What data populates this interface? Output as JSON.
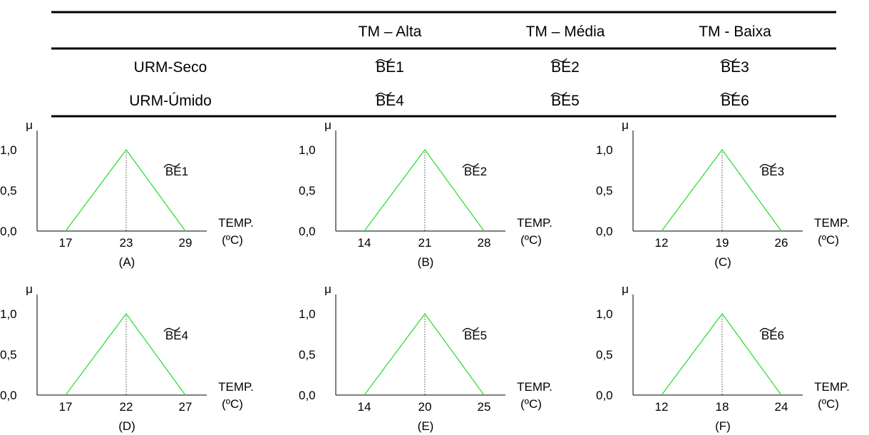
{
  "table": {
    "headers": [
      "TM – Alta",
      "TM – Média",
      "TM - Baixa"
    ],
    "rows": [
      {
        "label": "URM-Seco",
        "cells": [
          "BE1",
          "BE2",
          "BE3"
        ]
      },
      {
        "label": "URM-Úmido",
        "cells": [
          "BE4",
          "BE5",
          "BE6"
        ]
      }
    ]
  },
  "chart_data": [
    {
      "type": "line",
      "panel": "(A)",
      "set": "BE1",
      "xticks": [
        17,
        23,
        29
      ],
      "series": [
        {
          "x": [
            17,
            23,
            29
          ],
          "y": [
            0,
            1,
            0
          ]
        }
      ],
      "peak": 23,
      "yticks": [
        "1,0",
        "0,5",
        "0,0"
      ],
      "ylabel": "μ",
      "xlabel": [
        "TEMP.",
        "(ºC)"
      ],
      "color": "#33dd33"
    },
    {
      "type": "line",
      "panel": "(B)",
      "set": "BE2",
      "xticks": [
        14,
        21,
        28
      ],
      "series": [
        {
          "x": [
            14,
            21,
            28
          ],
          "y": [
            0,
            1,
            0
          ]
        }
      ],
      "peak": 21,
      "yticks": [
        "1,0",
        "0,5",
        "0,0"
      ],
      "ylabel": "μ",
      "xlabel": [
        "TEMP.",
        "(ºC)"
      ],
      "color": "#33dd33"
    },
    {
      "type": "line",
      "panel": "(C)",
      "set": "BE3",
      "xticks": [
        12,
        19,
        26
      ],
      "series": [
        {
          "x": [
            12,
            19,
            26
          ],
          "y": [
            0,
            1,
            0
          ]
        }
      ],
      "peak": 19,
      "yticks": [
        "1,0",
        "0,5",
        "0,0"
      ],
      "ylabel": "μ",
      "xlabel": [
        "TEMP.",
        "(ºC)"
      ],
      "color": "#33dd33"
    },
    {
      "type": "line",
      "panel": "(D)",
      "set": "BE4",
      "xticks": [
        17,
        22,
        27
      ],
      "series": [
        {
          "x": [
            17,
            22,
            27
          ],
          "y": [
            0,
            1,
            0
          ]
        }
      ],
      "peak": 22,
      "yticks": [
        "1,0",
        "0,5",
        "0,0"
      ],
      "ylabel": "μ",
      "xlabel": [
        "TEMP.",
        "(ºC)"
      ],
      "color": "#33dd33"
    },
    {
      "type": "line",
      "panel": "(E)",
      "set": "BE5",
      "xticks": [
        14,
        20,
        25
      ],
      "series": [
        {
          "x": [
            14,
            20,
            25
          ],
          "y": [
            0,
            1,
            0
          ]
        }
      ],
      "peak": 20,
      "yticks": [
        "1,0",
        "0,5",
        "0,0"
      ],
      "ylabel": "μ",
      "xlabel": [
        "TEMP.",
        "(ºC)"
      ],
      "color": "#33dd33"
    },
    {
      "type": "line",
      "panel": "(F)",
      "set": "BE6",
      "xticks": [
        12,
        18,
        24
      ],
      "series": [
        {
          "x": [
            12,
            18,
            24
          ],
          "y": [
            0,
            1,
            0
          ]
        }
      ],
      "peak": 18,
      "yticks": [
        "1,0",
        "0,5",
        "0,0"
      ],
      "ylabel": "μ",
      "xlabel": [
        "TEMP.",
        "(ºC)"
      ],
      "color": "#33dd33"
    }
  ]
}
